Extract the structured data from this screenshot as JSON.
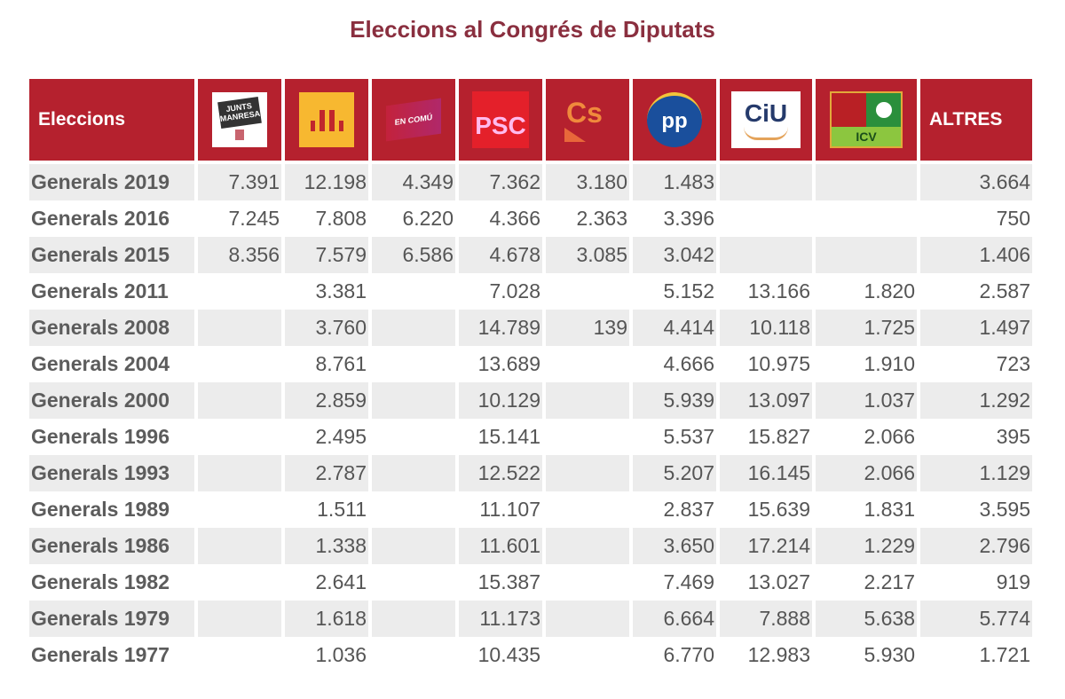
{
  "title": "Eleccions al Congrés de Diputats",
  "table": {
    "header_label": "Eleccions",
    "parties": [
      {
        "name": "Junts per Manresa",
        "logo_text": "JUNTS PER MANRESA",
        "icon": "junts-logo"
      },
      {
        "name": "ERC",
        "logo_text": "",
        "icon": "erc-logo"
      },
      {
        "name": "En Comú Podem",
        "logo_text": "EN COMÚ PODEM",
        "icon": "en-comu-podem-logo"
      },
      {
        "name": "PSC",
        "logo_text": "PSC",
        "icon": "psc-logo"
      },
      {
        "name": "Cs",
        "logo_text": "Cs",
        "icon": "cs-logo"
      },
      {
        "name": "PP",
        "logo_text": "PP",
        "icon": "pp-logo"
      },
      {
        "name": "CiU",
        "logo_text": "CiU",
        "icon": "ciu-logo"
      },
      {
        "name": "ICV",
        "logo_text": "ICV",
        "icon": "icv-logo"
      }
    ],
    "others_label": "ALTRES",
    "header_color": "#b5212e",
    "rows": [
      [
        "Generals 2019",
        "7.391",
        "12.198",
        "4.349",
        "7.362",
        "3.180",
        "1.483",
        "",
        "",
        "3.664"
      ],
      [
        "Generals 2016",
        "7.245",
        "7.808",
        "6.220",
        "4.366",
        "2.363",
        "3.396",
        "",
        "",
        "750"
      ],
      [
        "Generals 2015",
        "8.356",
        "7.579",
        "6.586",
        "4.678",
        "3.085",
        "3.042",
        "",
        "",
        "1.406"
      ],
      [
        "Generals 2011",
        "",
        "3.381",
        "",
        "7.028",
        "",
        "5.152",
        "13.166",
        "1.820",
        "2.587"
      ],
      [
        "Generals 2008",
        "",
        "3.760",
        "",
        "14.789",
        "139",
        "4.414",
        "10.118",
        "1.725",
        "1.497"
      ],
      [
        "Generals 2004",
        "",
        "8.761",
        "",
        "13.689",
        "",
        "4.666",
        "10.975",
        "1.910",
        "723"
      ],
      [
        "Generals 2000",
        "",
        "2.859",
        "",
        "10.129",
        "",
        "5.939",
        "13.097",
        "1.037",
        "1.292"
      ],
      [
        "Generals 1996",
        "",
        "2.495",
        "",
        "15.141",
        "",
        "5.537",
        "15.827",
        "2.066",
        "395"
      ],
      [
        "Generals 1993",
        "",
        "2.787",
        "",
        "12.522",
        "",
        "5.207",
        "16.145",
        "2.066",
        "1.129"
      ],
      [
        "Generals 1989",
        "",
        "1.511",
        "",
        "11.107",
        "",
        "2.837",
        "15.639",
        "1.831",
        "3.595"
      ],
      [
        "Generals 1986",
        "",
        "1.338",
        "",
        "11.601",
        "",
        "3.650",
        "17.214",
        "1.229",
        "2.796"
      ],
      [
        "Generals 1982",
        "",
        "2.641",
        "",
        "15.387",
        "",
        "7.469",
        "13.027",
        "2.217",
        "919"
      ],
      [
        "Generals 1979",
        "",
        "1.618",
        "",
        "11.173",
        "",
        "6.664",
        "7.888",
        "5.638",
        "5.774"
      ],
      [
        "Generals 1977",
        "",
        "1.036",
        "",
        "10.435",
        "",
        "6.770",
        "12.983",
        "5.930",
        "1.721"
      ]
    ]
  }
}
